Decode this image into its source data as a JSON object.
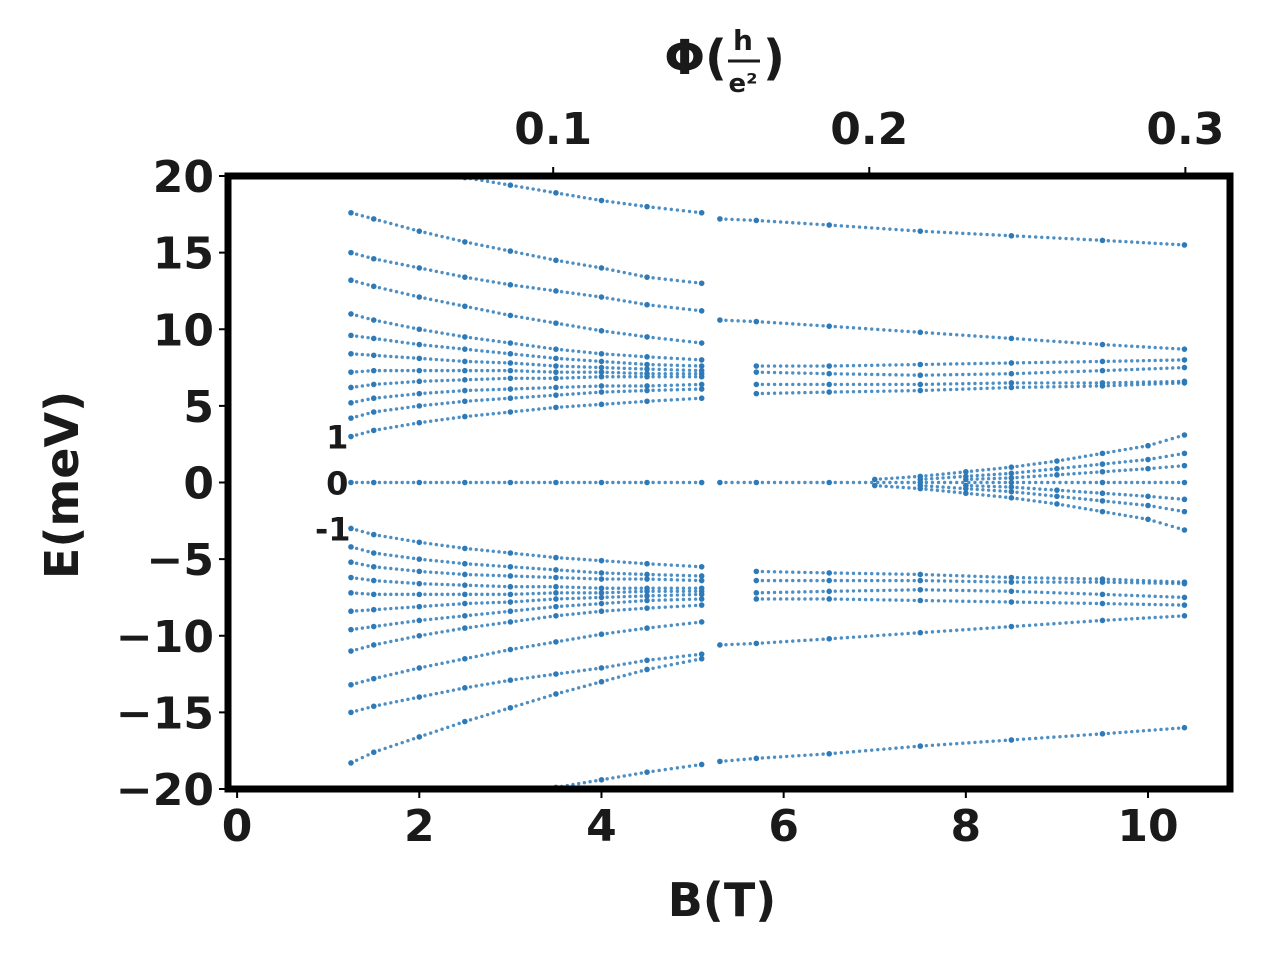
{
  "chart_data": {
    "type": "scatter",
    "title": "",
    "xlabel": "B(T)",
    "ylabel": "E(meV)",
    "top_axis": {
      "label_prefix": "Φ(",
      "label_frac_num": "h",
      "label_frac_den": "e²",
      "label_suffix": ")",
      "ticks": [
        {
          "value": 0.1,
          "label": "0.1"
        },
        {
          "value": 0.2,
          "label": "0.2"
        },
        {
          "value": 0.3,
          "label": "0.3"
        }
      ],
      "b_per_unit_phi": 34.7
    },
    "xlim": [
      -0.1,
      10.9
    ],
    "ylim": [
      -20,
      20
    ],
    "xticks": [
      {
        "value": 0,
        "label": "0"
      },
      {
        "value": 2,
        "label": "2"
      },
      {
        "value": 4,
        "label": "4"
      },
      {
        "value": 6,
        "label": "6"
      },
      {
        "value": 8,
        "label": "8"
      },
      {
        "value": 10,
        "label": "10"
      }
    ],
    "yticks": [
      {
        "value": 20,
        "label": "20"
      },
      {
        "value": 15,
        "label": "15"
      },
      {
        "value": 10,
        "label": "10"
      },
      {
        "value": 5,
        "label": "5"
      },
      {
        "value": 0,
        "label": "0"
      },
      {
        "value": -5,
        "label": "−5"
      },
      {
        "value": -10,
        "label": "−10"
      },
      {
        "value": -15,
        "label": "−15"
      },
      {
        "value": -20,
        "label": "−20"
      }
    ],
    "annotations": [
      {
        "text": "1",
        "x": 1.1,
        "y": 3
      },
      {
        "text": "0",
        "x": 1.1,
        "y": 0
      },
      {
        "text": "-1",
        "x": 1.05,
        "y": -3
      }
    ],
    "grid": false,
    "legend": "none",
    "marker_color": "#2e7ab8",
    "series": [
      {
        "x": [
          1.25,
          1.5,
          2.0,
          2.5,
          3.0,
          3.5,
          4.0,
          4.5,
          5.1
        ],
        "values": [
          3.0,
          3.4,
          3.9,
          4.3,
          4.6,
          4.9,
          5.1,
          5.3,
          5.5
        ]
      },
      {
        "x": [
          1.25,
          1.5,
          2.0,
          2.5,
          3.0,
          3.5,
          4.0,
          4.5,
          5.1
        ],
        "values": [
          4.2,
          4.6,
          5.0,
          5.3,
          5.5,
          5.7,
          5.9,
          6.0,
          6.1
        ]
      },
      {
        "x": [
          1.25,
          1.5,
          2.0,
          2.5,
          3.0,
          3.5,
          4.0,
          4.5,
          5.1
        ],
        "values": [
          5.2,
          5.5,
          5.8,
          6.0,
          6.1,
          6.2,
          6.3,
          6.3,
          6.4
        ]
      },
      {
        "x": [
          1.25,
          1.5,
          2.0,
          2.5,
          3.0,
          3.5,
          4.0,
          4.5,
          5.1
        ],
        "values": [
          6.2,
          6.4,
          6.6,
          6.7,
          6.8,
          6.8,
          6.9,
          6.9,
          6.9
        ]
      },
      {
        "x": [
          1.25,
          1.5,
          2.0,
          2.5,
          3.0,
          3.5,
          4.0,
          4.5,
          5.1
        ],
        "values": [
          7.2,
          7.3,
          7.3,
          7.3,
          7.3,
          7.2,
          7.2,
          7.1,
          7.1
        ]
      },
      {
        "x": [
          1.25,
          1.5,
          2.0,
          2.5,
          3.0,
          3.5,
          4.0,
          4.5,
          5.1
        ],
        "values": [
          8.4,
          8.3,
          8.1,
          7.9,
          7.8,
          7.6,
          7.5,
          7.4,
          7.3
        ]
      },
      {
        "x": [
          1.25,
          1.5,
          2.0,
          2.5,
          3.0,
          3.5,
          4.0,
          4.5,
          5.1
        ],
        "values": [
          9.6,
          9.4,
          9.0,
          8.7,
          8.4,
          8.1,
          7.9,
          7.7,
          7.6
        ]
      },
      {
        "x": [
          1.25,
          1.5,
          2.0,
          2.5,
          3.0,
          3.5,
          4.0,
          4.5,
          5.1
        ],
        "values": [
          11.0,
          10.6,
          10.0,
          9.5,
          9.1,
          8.7,
          8.4,
          8.2,
          8.0
        ]
      },
      {
        "x": [
          1.25,
          1.5,
          2.0,
          2.5,
          3.0,
          3.5,
          4.0,
          4.5,
          5.1
        ],
        "values": [
          13.2,
          12.8,
          12.1,
          11.5,
          10.9,
          10.4,
          9.9,
          9.5,
          9.1
        ]
      },
      {
        "x": [
          1.25,
          1.5,
          2.0,
          2.5,
          3.0,
          3.5,
          4.0,
          4.5,
          5.1
        ],
        "values": [
          15.0,
          14.6,
          14.0,
          13.4,
          12.9,
          12.5,
          12.1,
          11.6,
          11.2
        ]
      },
      {
        "x": [
          1.25,
          1.5,
          2.0,
          2.5,
          3.0,
          3.5,
          4.0,
          4.5,
          5.1
        ],
        "values": [
          17.6,
          17.2,
          16.4,
          15.7,
          15.1,
          14.5,
          14.0,
          13.4,
          13.0
        ]
      },
      {
        "x": [
          2.5,
          3.0,
          3.5,
          4.0,
          4.5,
          5.1
        ],
        "values": [
          19.9,
          19.4,
          18.9,
          18.4,
          18.0,
          17.6
        ]
      },
      {
        "x": [
          1.25,
          1.5,
          2.0,
          2.5,
          3.0,
          3.5,
          4.0,
          4.5,
          5.1
        ],
        "values": [
          0.0,
          0.0,
          0.0,
          0.0,
          0.0,
          0.0,
          0.0,
          0.0,
          0.0
        ]
      },
      {
        "x": [
          1.25,
          1.5,
          2.0,
          2.5,
          3.0,
          3.5,
          4.0,
          4.5,
          5.1
        ],
        "values": [
          -3.0,
          -3.4,
          -3.9,
          -4.3,
          -4.6,
          -4.9,
          -5.1,
          -5.3,
          -5.5
        ]
      },
      {
        "x": [
          1.25,
          1.5,
          2.0,
          2.5,
          3.0,
          3.5,
          4.0,
          4.5,
          5.1
        ],
        "values": [
          -4.2,
          -4.6,
          -5.0,
          -5.3,
          -5.5,
          -5.7,
          -5.9,
          -6.0,
          -6.1
        ]
      },
      {
        "x": [
          1.25,
          1.5,
          2.0,
          2.5,
          3.0,
          3.5,
          4.0,
          4.5,
          5.1
        ],
        "values": [
          -5.2,
          -5.5,
          -5.8,
          -6.0,
          -6.1,
          -6.2,
          -6.3,
          -6.3,
          -6.4
        ]
      },
      {
        "x": [
          1.25,
          1.5,
          2.0,
          2.5,
          3.0,
          3.5,
          4.0,
          4.5,
          5.1
        ],
        "values": [
          -6.2,
          -6.4,
          -6.6,
          -6.7,
          -6.8,
          -6.8,
          -6.9,
          -6.9,
          -6.9
        ]
      },
      {
        "x": [
          1.25,
          1.5,
          2.0,
          2.5,
          3.0,
          3.5,
          4.0,
          4.5,
          5.1
        ],
        "values": [
          -7.2,
          -7.3,
          -7.3,
          -7.3,
          -7.3,
          -7.2,
          -7.2,
          -7.1,
          -7.1
        ]
      },
      {
        "x": [
          1.25,
          1.5,
          2.0,
          2.5,
          3.0,
          3.5,
          4.0,
          4.5,
          5.1
        ],
        "values": [
          -8.4,
          -8.3,
          -8.1,
          -7.9,
          -7.8,
          -7.6,
          -7.5,
          -7.4,
          -7.3
        ]
      },
      {
        "x": [
          1.25,
          1.5,
          2.0,
          2.5,
          3.0,
          3.5,
          4.0,
          4.5,
          5.1
        ],
        "values": [
          -9.6,
          -9.4,
          -9.0,
          -8.7,
          -8.4,
          -8.1,
          -7.9,
          -7.7,
          -7.6
        ]
      },
      {
        "x": [
          1.25,
          1.5,
          2.0,
          2.5,
          3.0,
          3.5,
          4.0,
          4.5,
          5.1
        ],
        "values": [
          -11.0,
          -10.6,
          -10.0,
          -9.5,
          -9.1,
          -8.7,
          -8.4,
          -8.2,
          -8.0
        ]
      },
      {
        "x": [
          1.25,
          1.5,
          2.0,
          2.5,
          3.0,
          3.5,
          4.0,
          4.5,
          5.1
        ],
        "values": [
          -13.2,
          -12.8,
          -12.1,
          -11.5,
          -10.9,
          -10.4,
          -9.9,
          -9.5,
          -9.1
        ]
      },
      {
        "x": [
          1.25,
          1.5,
          2.0,
          2.5,
          3.0,
          3.5,
          4.0,
          4.5,
          5.1
        ],
        "values": [
          -15.0,
          -14.6,
          -14.0,
          -13.4,
          -12.9,
          -12.5,
          -12.1,
          -11.6,
          -11.2
        ]
      },
      {
        "x": [
          1.25,
          1.5,
          2.0,
          2.5,
          3.0,
          3.5,
          4.0,
          4.5,
          5.1
        ],
        "values": [
          -18.3,
          -17.6,
          -16.6,
          -15.6,
          -14.7,
          -13.8,
          -13.0,
          -12.2,
          -11.5
        ]
      },
      {
        "x": [
          3.5,
          4.0,
          4.5,
          5.1
        ],
        "values": [
          -19.9,
          -19.4,
          -18.9,
          -18.4
        ]
      },
      {
        "x": [
          5.3,
          5.7,
          6.5,
          7.5,
          8.5,
          9.5,
          10.4
        ],
        "values": [
          17.2,
          17.1,
          16.8,
          16.4,
          16.1,
          15.8,
          15.5
        ]
      },
      {
        "x": [
          5.3,
          5.7,
          6.5,
          7.5,
          8.5,
          9.5,
          10.4
        ],
        "values": [
          10.6,
          10.5,
          10.2,
          9.8,
          9.4,
          9.0,
          8.7
        ]
      },
      {
        "x": [
          5.7,
          6.5,
          7.5,
          8.5,
          9.5,
          10.4
        ],
        "values": [
          7.6,
          7.6,
          7.7,
          7.8,
          7.9,
          8.0
        ]
      },
      {
        "x": [
          5.7,
          6.5,
          7.5,
          8.5,
          9.5,
          10.4
        ],
        "values": [
          7.2,
          7.1,
          7.0,
          7.1,
          7.3,
          7.5
        ]
      },
      {
        "x": [
          5.7,
          6.5,
          7.5,
          8.5,
          9.5,
          10.4
        ],
        "values": [
          6.4,
          6.4,
          6.4,
          6.5,
          6.5,
          6.6
        ]
      },
      {
        "x": [
          5.7,
          6.5,
          7.5,
          8.5,
          9.5,
          10.4
        ],
        "values": [
          5.8,
          5.9,
          6.0,
          6.2,
          6.3,
          6.5
        ]
      },
      {
        "x": [
          5.3,
          5.7,
          6.5,
          7.5,
          8.5,
          9.5,
          10.4
        ],
        "values": [
          0.0,
          0.0,
          0.0,
          0.0,
          0.0,
          0.0,
          0.0
        ]
      },
      {
        "x": [
          7.0,
          7.5,
          8.0,
          8.5,
          9.0,
          9.5,
          10.0,
          10.4
        ],
        "values": [
          0.2,
          0.4,
          0.7,
          1.0,
          1.4,
          1.9,
          2.4,
          3.1
        ]
      },
      {
        "x": [
          7.5,
          8.0,
          8.5,
          9.0,
          9.5,
          10.0,
          10.4
        ],
        "values": [
          0.2,
          0.4,
          0.6,
          0.9,
          1.2,
          1.5,
          1.9
        ]
      },
      {
        "x": [
          8.0,
          8.5,
          9.0,
          9.5,
          10.0,
          10.4
        ],
        "values": [
          0.2,
          0.3,
          0.5,
          0.7,
          0.9,
          1.1
        ]
      },
      {
        "x": [
          7.0,
          7.5,
          8.0,
          8.5,
          9.0,
          9.5,
          10.0,
          10.4
        ],
        "values": [
          -0.2,
          -0.4,
          -0.7,
          -1.0,
          -1.4,
          -1.9,
          -2.4,
          -3.1
        ]
      },
      {
        "x": [
          7.5,
          8.0,
          8.5,
          9.0,
          9.5,
          10.0,
          10.4
        ],
        "values": [
          -0.2,
          -0.4,
          -0.6,
          -0.9,
          -1.2,
          -1.5,
          -1.9
        ]
      },
      {
        "x": [
          8.0,
          8.5,
          9.0,
          9.5,
          10.0,
          10.4
        ],
        "values": [
          -0.2,
          -0.3,
          -0.5,
          -0.7,
          -0.9,
          -1.1
        ]
      },
      {
        "x": [
          5.7,
          6.5,
          7.5,
          8.5,
          9.5,
          10.4
        ],
        "values": [
          -5.8,
          -5.9,
          -6.0,
          -6.2,
          -6.3,
          -6.5
        ]
      },
      {
        "x": [
          5.7,
          6.5,
          7.5,
          8.5,
          9.5,
          10.4
        ],
        "values": [
          -6.4,
          -6.4,
          -6.4,
          -6.5,
          -6.5,
          -6.6
        ]
      },
      {
        "x": [
          5.7,
          6.5,
          7.5,
          8.5,
          9.5,
          10.4
        ],
        "values": [
          -7.2,
          -7.1,
          -7.0,
          -7.1,
          -7.3,
          -7.5
        ]
      },
      {
        "x": [
          5.7,
          6.5,
          7.5,
          8.5,
          9.5,
          10.4
        ],
        "values": [
          -7.6,
          -7.6,
          -7.7,
          -7.8,
          -7.9,
          -8.0
        ]
      },
      {
        "x": [
          5.3,
          5.7,
          6.5,
          7.5,
          8.5,
          9.5,
          10.4
        ],
        "values": [
          -10.6,
          -10.5,
          -10.2,
          -9.8,
          -9.4,
          -9.0,
          -8.7
        ]
      },
      {
        "x": [
          5.3,
          5.7,
          6.5,
          7.5,
          8.5,
          9.5,
          10.4
        ],
        "values": [
          -18.2,
          -18.0,
          -17.7,
          -17.2,
          -16.8,
          -16.4,
          -16.0
        ]
      }
    ]
  }
}
